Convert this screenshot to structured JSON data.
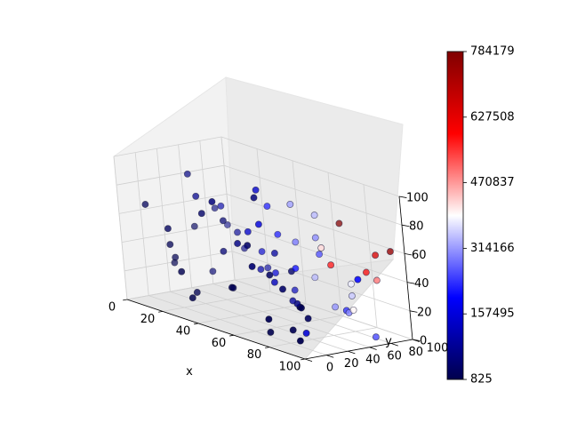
{
  "chart_data": {
    "type": "scatter",
    "projection": "3d",
    "xlabel": "x",
    "ylabel": "y",
    "zlabel": "",
    "xlim": [
      0,
      100
    ],
    "ylim": [
      0,
      100
    ],
    "zlim": [
      0,
      100
    ],
    "xticks": [
      "0",
      "20",
      "40",
      "60",
      "80",
      "100"
    ],
    "yticks": [
      "0",
      "20",
      "40",
      "60",
      "80",
      "100"
    ],
    "zticks": [
      "0",
      "20",
      "40",
      "60",
      "80",
      "100"
    ],
    "grid": true,
    "colormap": "seismic",
    "colorbar": {
      "min": 825,
      "max": 784179,
      "ticks": [
        "825",
        "157495",
        "314166",
        "470837",
        "627508",
        "784179"
      ],
      "placement": "right"
    },
    "points": [
      [
        98,
        3,
        35,
        25000
      ],
      [
        92,
        10,
        8,
        4000
      ],
      [
        88,
        20,
        28,
        8000
      ],
      [
        85,
        30,
        18,
        20000
      ],
      [
        82,
        20,
        10,
        6000
      ],
      [
        80,
        35,
        5,
        150000
      ],
      [
        78,
        5,
        18,
        9000
      ],
      [
        75,
        25,
        35,
        30000
      ],
      [
        72,
        15,
        5,
        3000
      ],
      [
        70,
        45,
        20,
        60000
      ],
      [
        68,
        10,
        50,
        40000
      ],
      [
        65,
        30,
        40,
        25000
      ],
      [
        62,
        55,
        38,
        35000
      ],
      [
        60,
        20,
        60,
        30000
      ],
      [
        58,
        45,
        30,
        120000
      ],
      [
        55,
        40,
        70,
        160000
      ],
      [
        52,
        15,
        28,
        20000
      ],
      [
        50,
        60,
        45,
        90000
      ],
      [
        48,
        30,
        55,
        60000
      ],
      [
        45,
        15,
        85,
        50000
      ],
      [
        42,
        50,
        58,
        140000
      ],
      [
        40,
        35,
        20,
        8000
      ],
      [
        38,
        65,
        28,
        100000
      ],
      [
        35,
        5,
        15,
        2000
      ],
      [
        32,
        25,
        70,
        30000
      ],
      [
        30,
        45,
        40,
        45000
      ],
      [
        28,
        8,
        30,
        5000
      ],
      [
        25,
        55,
        58,
        40000
      ],
      [
        22,
        30,
        10,
        6000
      ],
      [
        20,
        40,
        75,
        70000
      ],
      [
        18,
        15,
        55,
        20000
      ],
      [
        15,
        70,
        62,
        100000
      ],
      [
        12,
        25,
        40,
        10000
      ],
      [
        10,
        50,
        85,
        60000
      ],
      [
        8,
        35,
        28,
        8000
      ],
      [
        5,
        60,
        45,
        20000
      ],
      [
        3,
        20,
        65,
        15000
      ],
      [
        1,
        45,
        20,
        4000
      ],
      [
        95,
        50,
        25,
        250000
      ],
      [
        90,
        60,
        20,
        300000
      ],
      [
        85,
        72,
        28,
        350000
      ],
      [
        80,
        80,
        15,
        400000
      ],
      [
        75,
        88,
        30,
        380000
      ],
      [
        92,
        85,
        40,
        500000
      ],
      [
        88,
        92,
        55,
        650000
      ],
      [
        95,
        95,
        60,
        750000
      ],
      [
        70,
        90,
        70,
        780000
      ],
      [
        65,
        75,
        60,
        300000
      ],
      [
        60,
        85,
        45,
        250000
      ],
      [
        55,
        70,
        35,
        200000
      ],
      [
        50,
        80,
        50,
        280000
      ],
      [
        45,
        65,
        75,
        220000
      ],
      [
        40,
        75,
        25,
        150000
      ],
      [
        35,
        88,
        48,
        200000
      ],
      [
        98,
        70,
        5,
        260000
      ],
      [
        90,
        40,
        68,
        420000
      ],
      [
        82,
        60,
        50,
        560000
      ],
      [
        78,
        98,
        38,
        600000
      ],
      [
        72,
        65,
        80,
        340000
      ],
      [
        68,
        50,
        88,
        320000
      ],
      [
        62,
        92,
        8,
        300000
      ],
      [
        58,
        60,
        15,
        90000
      ],
      [
        52,
        45,
        92,
        140000
      ],
      [
        48,
        98,
        22,
        330000
      ],
      [
        42,
        88,
        12,
        120000
      ],
      [
        30,
        80,
        35,
        140000
      ],
      [
        25,
        92,
        20,
        90000
      ],
      [
        20,
        75,
        45,
        80000
      ],
      [
        15,
        88,
        30,
        60000
      ],
      [
        10,
        65,
        15,
        40000
      ],
      [
        5,
        80,
        55,
        50000
      ],
      [
        2,
        95,
        40,
        60000
      ],
      [
        100,
        55,
        48,
        200000
      ],
      [
        60,
        30,
        92,
        50000
      ]
    ]
  }
}
